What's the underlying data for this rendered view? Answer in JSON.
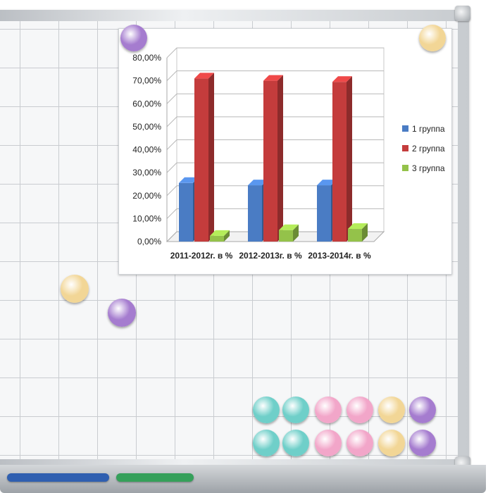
{
  "chart_data": {
    "type": "bar",
    "categories": [
      "2011-2012г. в %",
      "2012-2013г. в %",
      "2013-2014г. в %"
    ],
    "series": [
      {
        "name": "1 группа",
        "values": [
          25.5,
          24.5,
          24.5
        ]
      },
      {
        "name": "2 группа",
        "values": [
          71.0,
          70.0,
          69.5
        ]
      },
      {
        "name": "3 группа",
        "values": [
          2.5,
          5.0,
          5.5
        ]
      }
    ],
    "ylim": [
      0,
      80
    ],
    "yticks": [
      "0,00%",
      "10,00%",
      "20,00%",
      "30,00%",
      "40,00%",
      "50,00%",
      "60,00%",
      "70,00%",
      "80,00%"
    ],
    "grid": true,
    "style": "3d",
    "legend_position": "right",
    "colors": {
      "1 группа": "#4a7cc4",
      "2 группа": "#c43c3c",
      "3 группа": "#94c24a"
    }
  },
  "board": {
    "magnets": {
      "purple": "#a57ccf",
      "yellow": "#f2d696",
      "teal": "#6fcfc9",
      "pink": "#f2a6c9"
    },
    "markers": {
      "blue": "#2f5fb0",
      "green": "#35a05a"
    }
  }
}
